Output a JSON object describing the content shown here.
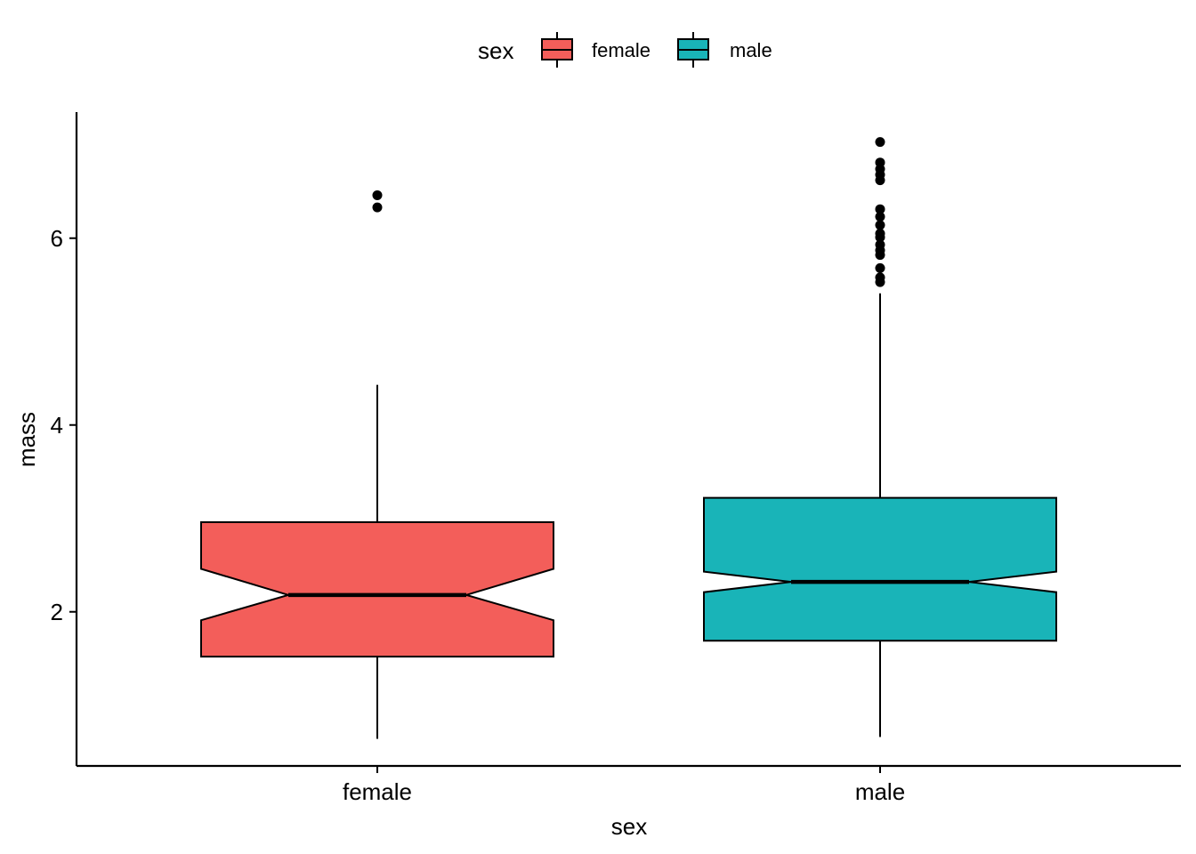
{
  "chart_data": {
    "type": "boxplot",
    "notched": true,
    "xlabel": "sex",
    "ylabel": "mass",
    "categories": [
      "female",
      "male"
    ],
    "ylim": [
      0.35,
      7.35
    ],
    "y_ticks": [
      2,
      4,
      6
    ],
    "y_tick_labels": [
      "2",
      "4",
      "6"
    ],
    "grid": false,
    "legend": {
      "title": "sex",
      "position": "top",
      "entries": [
        {
          "label": "female",
          "color": "#F35E5A"
        },
        {
          "label": "male",
          "color": "#19B4B8"
        }
      ]
    },
    "boxes": [
      {
        "name": "female",
        "color": "#F35E5A",
        "whisker_low": 0.64,
        "q1": 1.52,
        "notch_low": 1.91,
        "median": 2.18,
        "notch_high": 2.46,
        "q3": 2.96,
        "whisker_high": 4.43,
        "outliers": [
          6.33,
          6.46
        ]
      },
      {
        "name": "male",
        "color": "#19B4B8",
        "whisker_low": 0.66,
        "q1": 1.69,
        "notch_low": 2.21,
        "median": 2.32,
        "notch_high": 2.43,
        "q3": 3.22,
        "whisker_high": 5.41,
        "outliers": [
          5.53,
          5.58,
          5.68,
          5.82,
          5.87,
          5.93,
          6.01,
          6.05,
          6.14,
          6.23,
          6.31,
          6.62,
          6.68,
          6.74,
          6.81,
          7.03
        ]
      }
    ]
  }
}
